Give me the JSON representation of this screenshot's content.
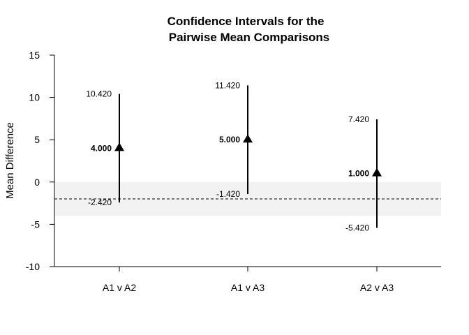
{
  "chart_data": {
    "type": "scatter",
    "title": [
      "Confidence Intervals for the",
      "Pairwise Mean Comparisons"
    ],
    "ylabel": "Mean Difference",
    "xlabel": "",
    "categories": [
      "A1 v A2",
      "A1 v A3",
      "A2 v A3"
    ],
    "estimates": [
      4.0,
      5.0,
      1.0
    ],
    "estimate_labels": [
      "4.000",
      "5.000",
      "1.000"
    ],
    "lower": [
      -2.42,
      -1.42,
      -5.42
    ],
    "lower_labels": [
      "-2.420",
      "-1.420",
      "-5.420"
    ],
    "upper": [
      10.42,
      11.42,
      7.42
    ],
    "upper_labels": [
      "10.420",
      "11.420",
      "7.420"
    ],
    "ylim": [
      -10,
      15
    ],
    "yticks": [
      "15",
      "10",
      "5",
      "0",
      "-5",
      "-10"
    ],
    "reference_line": -2,
    "shaded_band": [
      -4,
      0
    ],
    "shade_color": "#f2f2f2",
    "mark_color": "#000000",
    "grid": false
  }
}
